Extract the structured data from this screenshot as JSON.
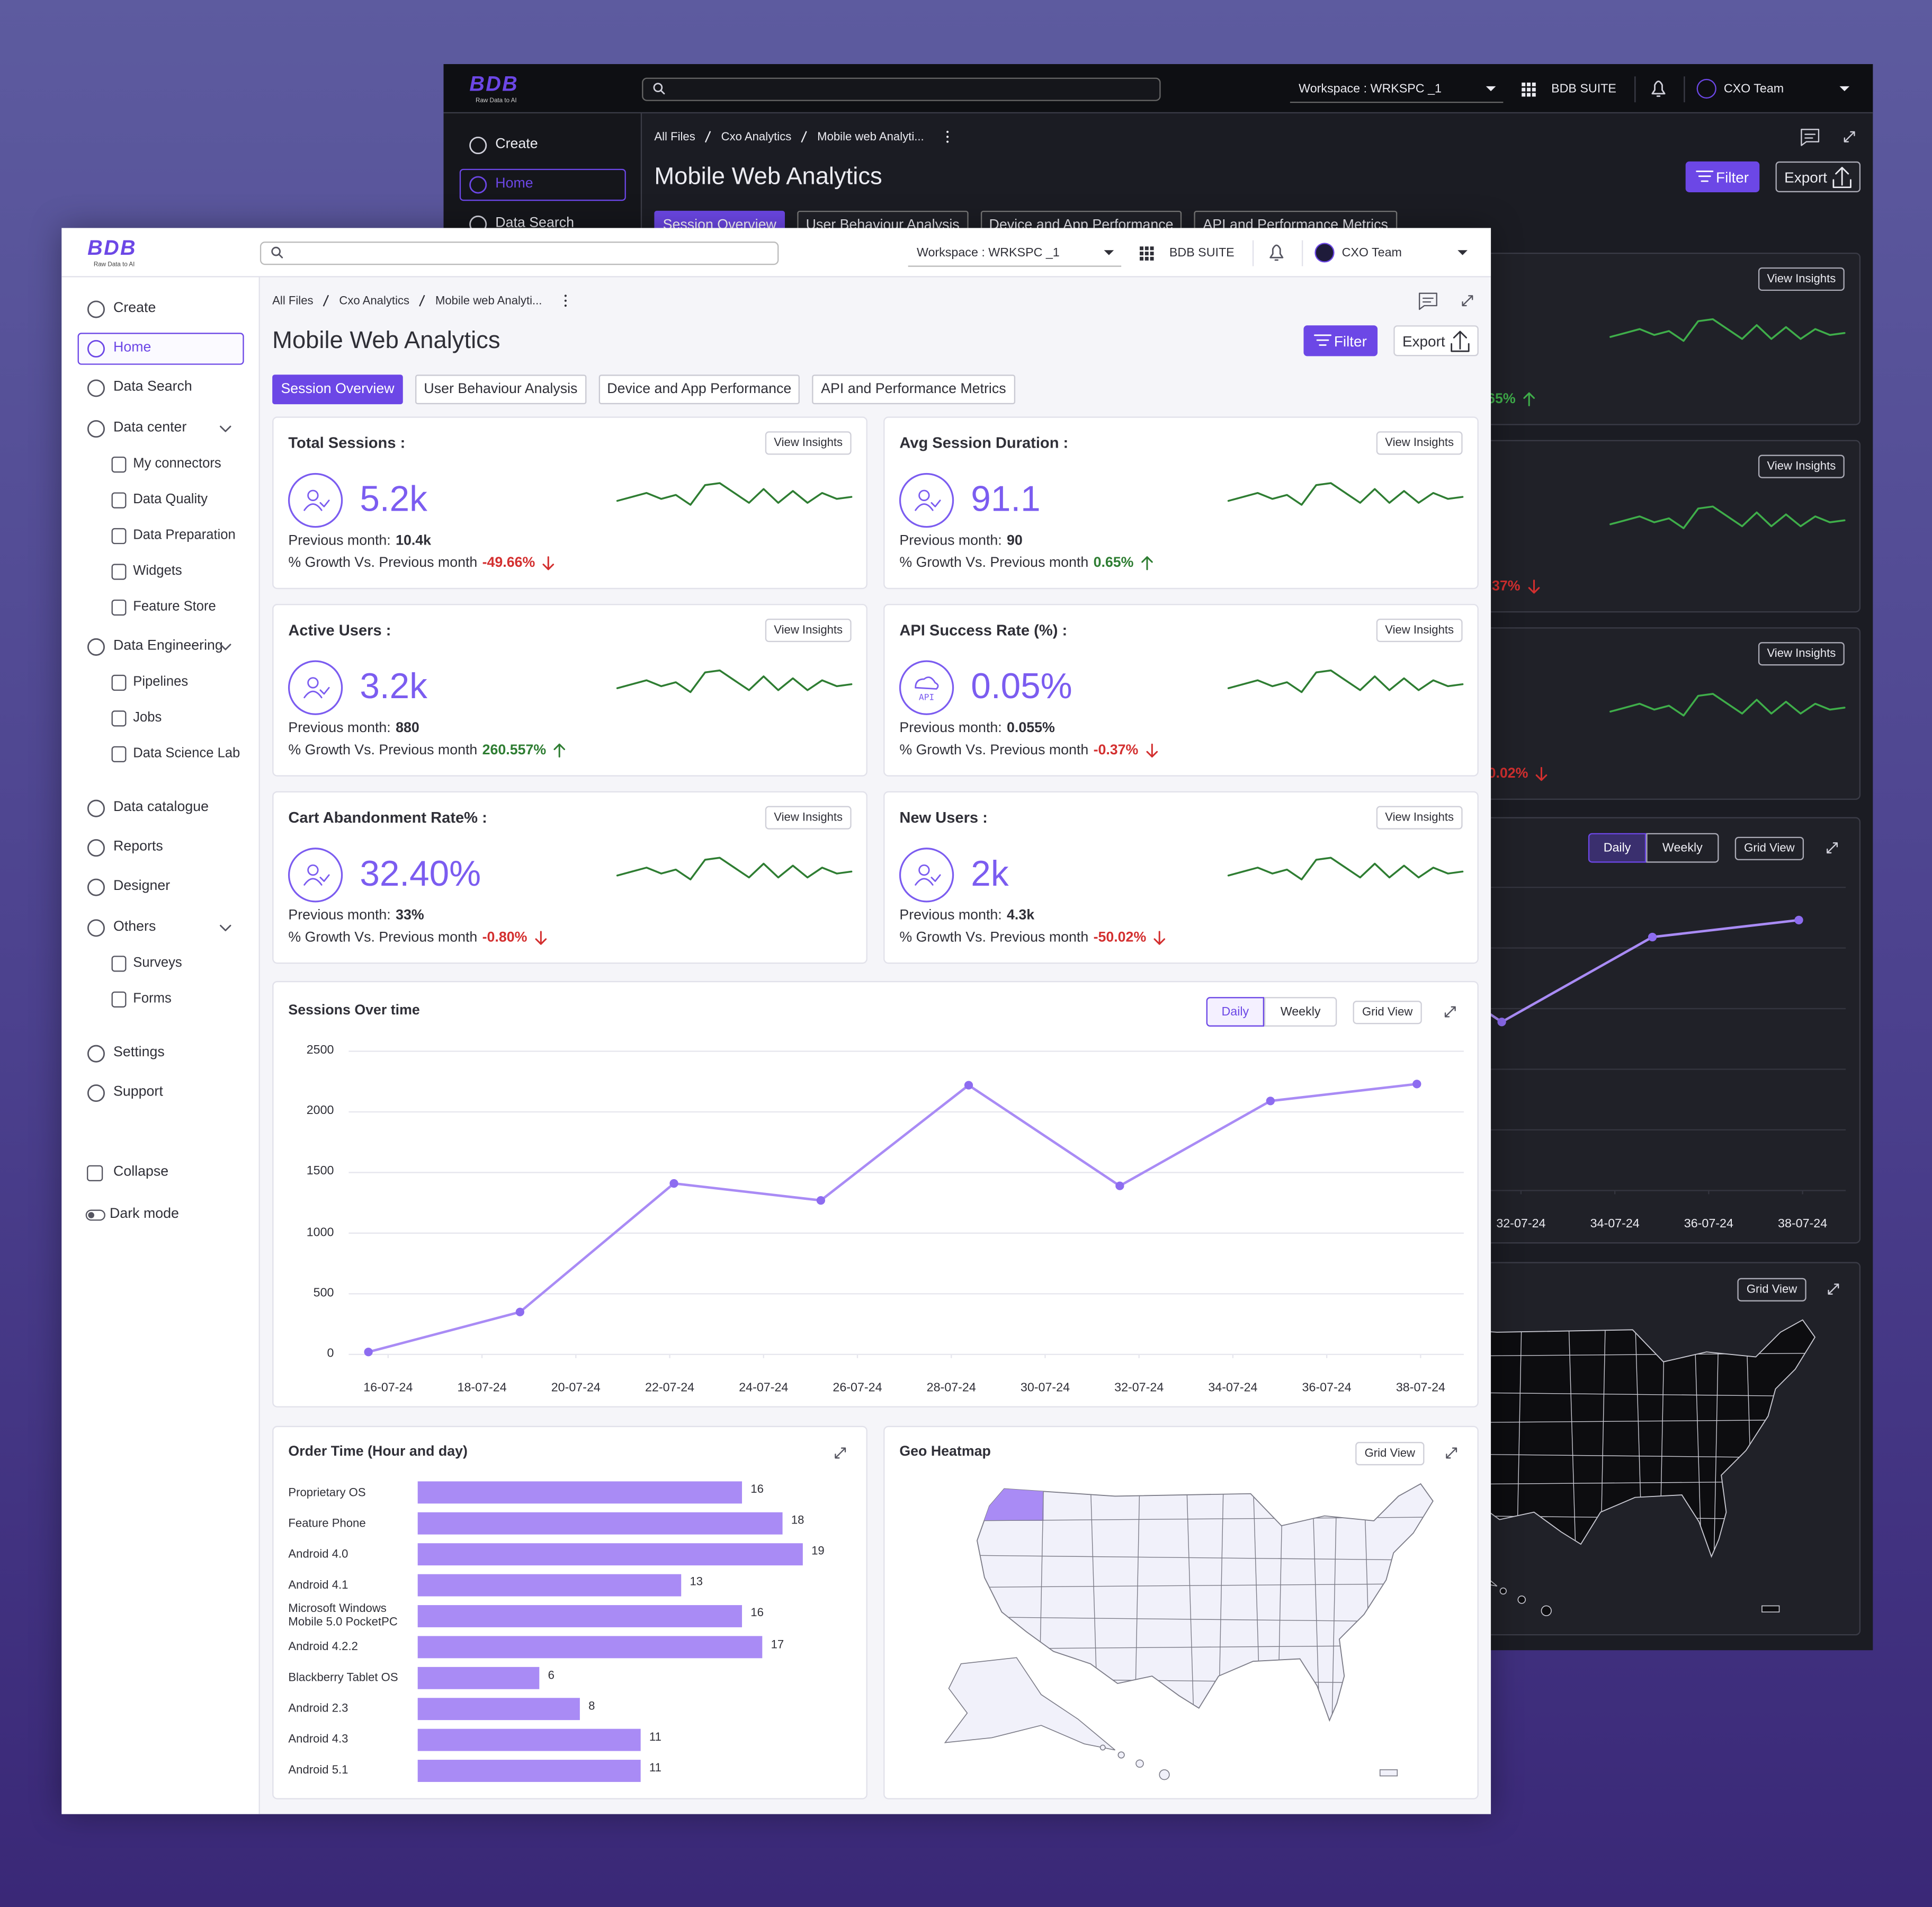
{
  "header": {
    "logo": "BDB",
    "tagline": "Raw Data to AI",
    "workspace": "Workspace : WRKSPC _1",
    "suite": "BDB SUITE",
    "team": "CXO Team"
  },
  "sidebar": {
    "items": [
      {
        "label": "Create"
      },
      {
        "label": "Home",
        "active": true
      },
      {
        "label": "Data Search"
      },
      {
        "label": "Data center",
        "children": [
          "My connectors",
          "Data Quality",
          "Data Preparation",
          "Widgets",
          "Feature Store"
        ]
      },
      {
        "label": "Data Engineering",
        "children": [
          "Pipelines",
          "Jobs",
          "Data Science Lab"
        ]
      },
      {
        "label": "Data catalogue"
      },
      {
        "label": "Reports"
      },
      {
        "label": "Designer"
      },
      {
        "label": "Others",
        "children": [
          "Surveys",
          "Forms"
        ]
      },
      {
        "label": "Settings"
      },
      {
        "label": "Support"
      }
    ],
    "footer": [
      "Collapse",
      "Dark mode"
    ]
  },
  "breadcrumb": [
    "All Files",
    "Cxo Analytics",
    "Mobile web Analyti..."
  ],
  "title": "Mobile Web Analytics",
  "actions": {
    "filter": "Filter",
    "export": "Export"
  },
  "tabs": [
    {
      "label": "Session Overview",
      "active": true
    },
    {
      "label": "User Behaviour Analysis"
    },
    {
      "label": "Device and App Performance"
    },
    {
      "label": "API and Performance Metrics"
    }
  ],
  "metrics": [
    {
      "title": "Total Sessions :",
      "value": "5.2k",
      "previous_label": "Previous month:",
      "previous": "10.4k",
      "growth_label": "% Growth Vs. Previous month",
      "growth": "-49.66%",
      "action": "View Insights",
      "sparkline": {
        "values": [
          3,
          4,
          5,
          3.5,
          4.5,
          2,
          7,
          7.5,
          5,
          2.5,
          6,
          2.5,
          5.5,
          2.5,
          5,
          3.5,
          4
        ],
        "ylim": [
          0,
          10
        ]
      }
    },
    {
      "title": "Avg Session Duration :",
      "value": "91.1",
      "previous_label": "Previous month:",
      "previous": "90",
      "growth_label": "% Growth Vs. Previous month",
      "growth": "0.65%",
      "action": "View Insights",
      "sparkline": {
        "values": [
          3,
          4,
          5,
          3.5,
          4.5,
          2,
          7,
          7.5,
          5,
          2.5,
          6,
          2.5,
          5.5,
          2.5,
          5,
          3.5,
          4
        ],
        "ylim": [
          0,
          10
        ]
      }
    },
    {
      "title": "Active Users :",
      "value": "3.2k",
      "previous_label": "Previous month:",
      "previous": "880",
      "growth_label": "% Growth Vs. Previous month",
      "growth": "260.557%",
      "action": "View Insights",
      "sparkline": {
        "values": [
          3,
          4,
          5,
          3.5,
          4.5,
          2,
          7,
          7.5,
          5,
          2.5,
          6,
          2.5,
          5.5,
          2.5,
          5,
          3.5,
          4
        ],
        "ylim": [
          0,
          10
        ]
      }
    },
    {
      "title": "API Success Rate (%) :",
      "value": "0.05%",
      "previous_label": "Previous month:",
      "previous": "0.055%",
      "growth_label": "% Growth Vs. Previous month",
      "growth": "-0.37%",
      "action": "View Insights",
      "icon_label": "API",
      "sparkline": {
        "values": [
          3,
          4,
          5,
          3.5,
          4.5,
          2,
          7,
          7.5,
          5,
          2.5,
          6,
          2.5,
          5.5,
          2.5,
          5,
          3.5,
          4
        ],
        "ylim": [
          0,
          10
        ]
      }
    },
    {
      "title": "Cart Abandonment Rate% :",
      "value": "32.40%",
      "previous_label": "Previous month:",
      "previous": "33%",
      "growth_label": "% Growth Vs. Previous month",
      "growth": "-0.80%",
      "action": "View Insights",
      "sparkline": {
        "values": [
          3,
          4,
          5,
          3.5,
          4.5,
          2,
          7,
          7.5,
          5,
          2.5,
          6,
          2.5,
          5.5,
          2.5,
          5,
          3.5,
          4
        ],
        "ylim": [
          0,
          10
        ]
      }
    },
    {
      "title": "New Users :",
      "value": "2k",
      "previous_label": "Previous month:",
      "previous": "4.3k",
      "growth_label": "% Growth Vs. Previous month",
      "growth": "-50.02%",
      "action": "View Insights",
      "sparkline": {
        "values": [
          3,
          4,
          5,
          3.5,
          4.5,
          2,
          7,
          7.5,
          5,
          2.5,
          6,
          2.5,
          5.5,
          2.5,
          5,
          3.5,
          4
        ],
        "ylim": [
          0,
          10
        ]
      }
    }
  ],
  "chart_data": [
    {
      "type": "line",
      "title": "Sessions Over time",
      "toggle": [
        {
          "label": "Daily",
          "active": true
        },
        {
          "label": "Weekly"
        }
      ],
      "button": "Grid View",
      "x": [
        15.58,
        18.81,
        22.09,
        25.22,
        28.37,
        31.59,
        34.8,
        37.92
      ],
      "values": [
        20,
        350,
        1410,
        1270,
        2220,
        1390,
        2090,
        2230
      ],
      "color": "#a98bf5",
      "xlim": [
        15.16,
        38.92
      ],
      "xticks": [
        {
          "value": 16,
          "label": "16-07-24"
        },
        {
          "value": 18,
          "label": "18-07-24"
        },
        {
          "value": 20,
          "label": "20-07-24"
        },
        {
          "value": 22,
          "label": "22-07-24"
        },
        {
          "value": 24,
          "label": "24-07-24"
        },
        {
          "value": 26,
          "label": "26-07-24"
        },
        {
          "value": 28,
          "label": "28-07-24"
        },
        {
          "value": 30,
          "label": "30-07-24"
        },
        {
          "value": 32,
          "label": "32-07-24"
        },
        {
          "value": 34,
          "label": "34-07-24"
        },
        {
          "value": 36,
          "label": "36-07-24"
        },
        {
          "value": 38,
          "label": "38-07-24"
        }
      ],
      "ylim": [
        0,
        2500
      ],
      "yticks": [
        0,
        500,
        1000,
        1500,
        2000,
        2500
      ],
      "grid": true
    },
    {
      "type": "bar",
      "orientation": "horizontal",
      "title": "Order Time (Hour and day)",
      "categories": [
        "Proprietary OS",
        "Feature Phone",
        "Android 4.0",
        "Android 4.1",
        "Microsoft Windows Mobile 5.0 PocketPC",
        "Android 4.2.2",
        "Blackberry Tablet OS",
        "Android 2.3",
        "Android 4.3",
        "Android 5.1"
      ],
      "values": [
        16,
        18,
        19,
        13,
        16,
        17,
        6,
        8,
        11,
        11
      ],
      "color": "#a98bf5",
      "xlim": [
        0,
        20
      ]
    }
  ],
  "geo_heatmap": {
    "title": "Geo Heatmap",
    "button": "Grid View",
    "highlight_color": "#a98bf5"
  }
}
